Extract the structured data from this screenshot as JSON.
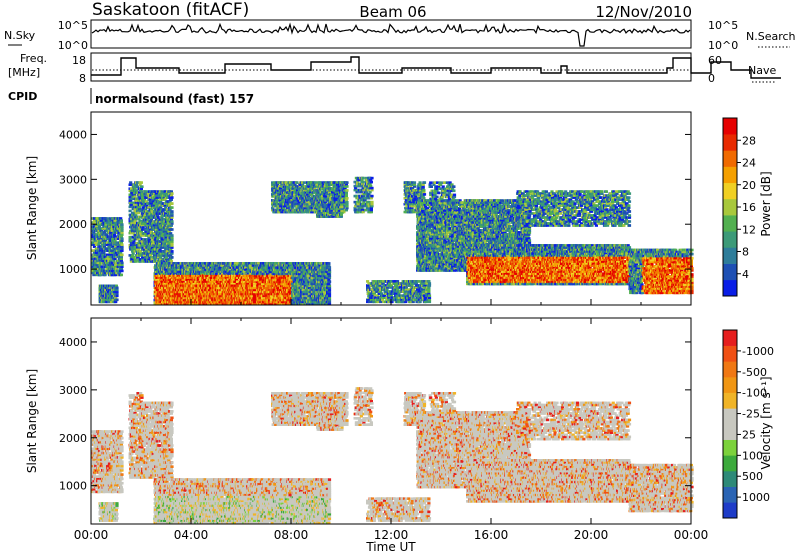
{
  "header": {
    "station": "Saskatoon (fitACF)",
    "beam": "Beam 06",
    "date": "12/Nov/2010"
  },
  "top_panels": {
    "nsky_label": "N.Sky",
    "nsky_ticks": [
      "10^5",
      "10^0"
    ],
    "nsearch_label": "N.Search",
    "nsearch_ticks": [
      "10^5",
      "10^0"
    ],
    "freq_label_1": "Freq.",
    "freq_label_2": "[MHz]",
    "freq_ticks": [
      "18",
      "8"
    ],
    "nave_label": "Nave",
    "nave_ticks": [
      "60",
      "0"
    ],
    "cpid_label": "CPID",
    "cpid_value": "normalsound (fast) 157"
  },
  "chart_data": [
    {
      "type": "heatmap",
      "panel": "power",
      "ylabel": "Slant Range [km]",
      "ylim": [
        200,
        4500
      ],
      "yticks": [
        1000,
        2000,
        3000,
        4000
      ],
      "xlim": [
        0,
        24
      ],
      "colorbar": {
        "label": "Power [dB]",
        "ticks": [
          "4",
          "8",
          "12",
          "16",
          "20",
          "24",
          "28"
        ],
        "colors": [
          "#0a1ee6",
          "#1e50b4",
          "#2e7d9a",
          "#3c9a78",
          "#52b050",
          "#a8c83c",
          "#f0d024",
          "#f5a000",
          "#f06a00",
          "#e82a00",
          "#e60000"
        ]
      }
    },
    {
      "type": "heatmap",
      "panel": "velocity",
      "ylabel": "Slant Range [km]",
      "ylim": [
        200,
        4500
      ],
      "yticks": [
        1000,
        2000,
        3000,
        4000
      ],
      "xlim": [
        0,
        24
      ],
      "xlabel": "Time UT",
      "xticks": [
        "00:00",
        "04:00",
        "08:00",
        "12:00",
        "16:00",
        "20:00",
        "00:00"
      ],
      "colorbar": {
        "label": "Velocity [m s⁻¹]",
        "ticks": [
          "1000",
          "500",
          "100",
          "25",
          "-25",
          "-100",
          "-500",
          "-1000"
        ],
        "colors": [
          "#1e3cc8",
          "#2a64b4",
          "#2e8a78",
          "#3caa3c",
          "#7cd23c",
          "#c8c8c0",
          "#c8c8c0",
          "#f0b428",
          "#f09614",
          "#f07814",
          "#f05014",
          "#e61e1e"
        ]
      }
    }
  ]
}
